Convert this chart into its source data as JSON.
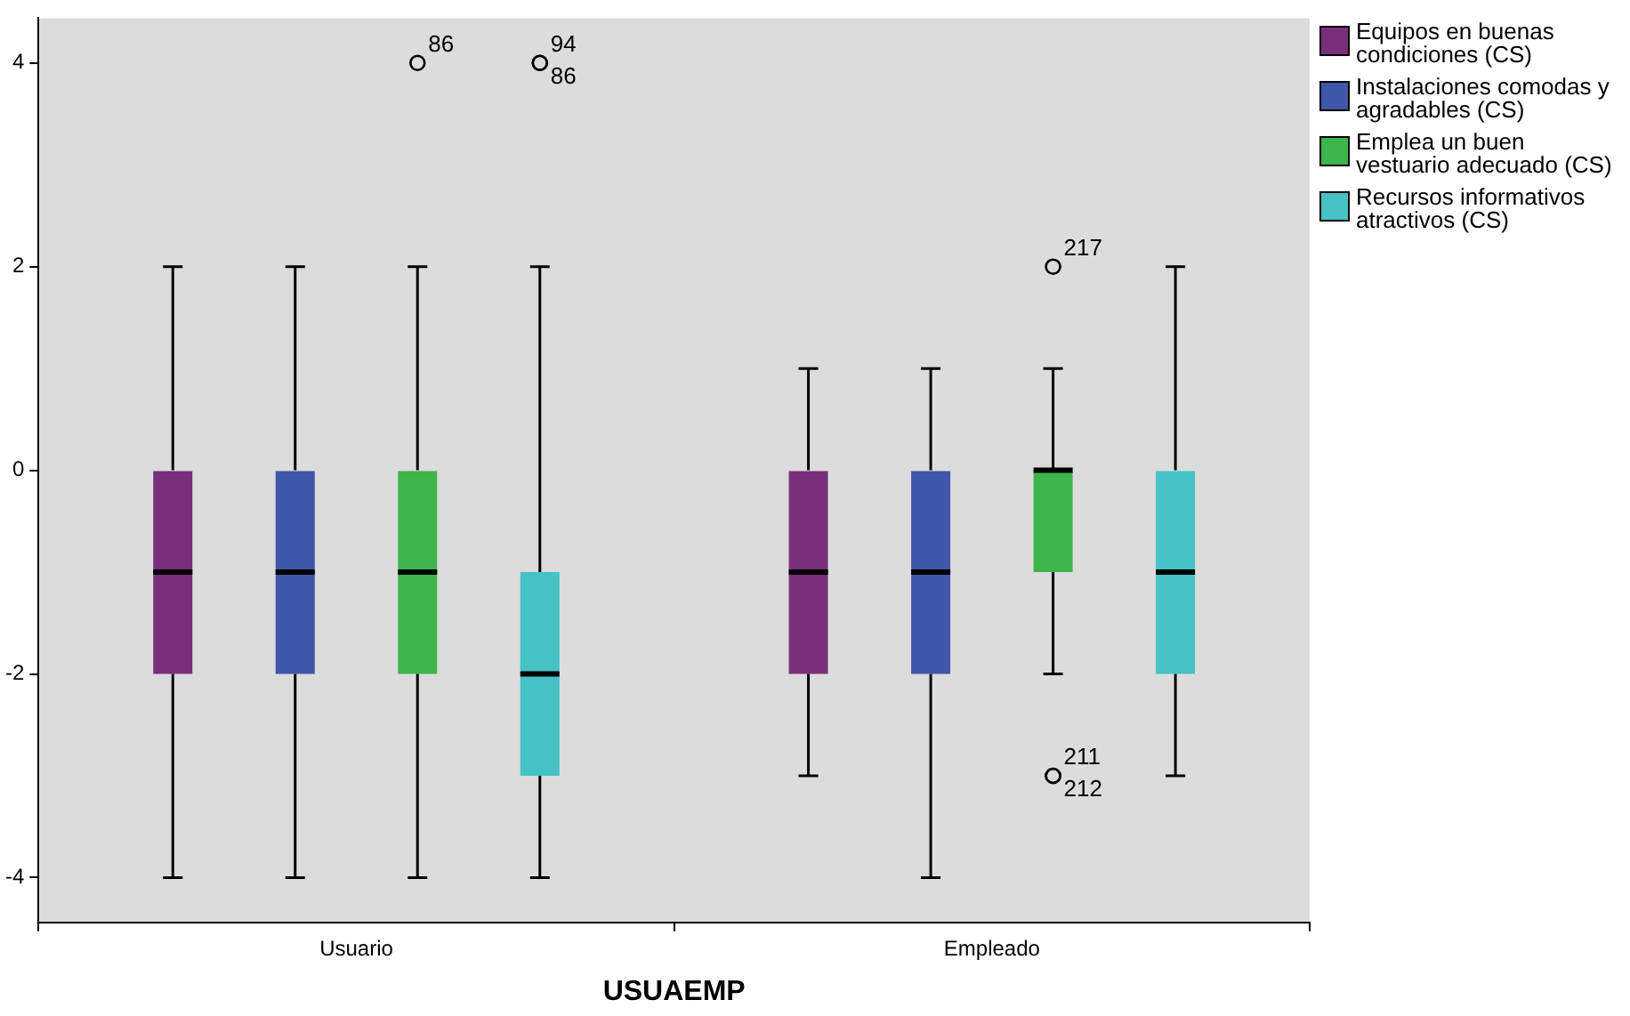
{
  "chart_data": {
    "type": "box",
    "xlabel": "USUAEMP",
    "categories": [
      "Usuario",
      "Empleado"
    ],
    "series": [
      {
        "name": "Equipos en buenas condiciones (CS)",
        "color": "#7a2f7c",
        "boxes": [
          {
            "low": -4,
            "q1": -2,
            "median": -1,
            "q3": 0,
            "high": 2
          },
          {
            "low": -3,
            "q1": -2,
            "median": -1,
            "q3": 0,
            "high": 1
          }
        ]
      },
      {
        "name": "Instalaciones comodas y agradables (CS)",
        "color": "#3f57a8",
        "boxes": [
          {
            "low": -4,
            "q1": -2,
            "median": -1,
            "q3": 0,
            "high": 2
          },
          {
            "low": -4,
            "q1": -2,
            "median": -1,
            "q3": 0,
            "high": 1
          }
        ]
      },
      {
        "name": "Emplea un buen vestuario adecuado (CS)",
        "color": "#3db54b",
        "boxes": [
          {
            "low": -4,
            "q1": -2,
            "median": -1,
            "q3": 0,
            "high": 2,
            "outliers": [
              4
            ]
          },
          {
            "low": -2,
            "q1": -1,
            "median": 0,
            "q3": 0,
            "high": 1,
            "outliers": [
              2,
              -3,
              -3
            ]
          }
        ]
      },
      {
        "name": "Recursos informativos atractivos (CS)",
        "color": "#46c2c6",
        "boxes": [
          {
            "low": -4,
            "q1": -3,
            "median": -2,
            "q3": -1,
            "high": 2,
            "outliers": [
              4,
              4
            ]
          },
          {
            "low": -3,
            "q1": -2,
            "median": -1,
            "q3": 0,
            "high": 2
          }
        ]
      }
    ],
    "ylim": [
      -4.44,
      4.44
    ],
    "yticks": [
      -4,
      -2,
      0,
      2,
      4
    ],
    "legend": "right",
    "grid": false,
    "annotations": [
      "86",
      "94",
      "86",
      "217",
      "211",
      "212"
    ]
  }
}
